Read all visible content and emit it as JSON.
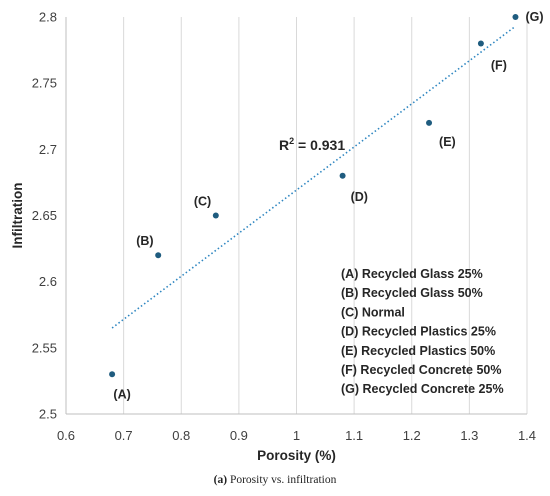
{
  "chart_data": {
    "type": "scatter",
    "title": "",
    "xlabel": "Porosity (%)",
    "ylabel": "Infiltration",
    "xlim": [
      0.6,
      1.4
    ],
    "ylim": [
      2.5,
      2.8
    ],
    "x_ticks": [
      "0.6",
      "0.7",
      "0.8",
      "0.9",
      "1",
      "1.1",
      "1.2",
      "1.3",
      "1.4"
    ],
    "y_ticks": [
      "2.5",
      "2.55",
      "2.6",
      "2.65",
      "2.7",
      "2.75",
      "2.8"
    ],
    "grid": "vertical",
    "marker_color": "#1f5c7f",
    "trendline_color": "#2e86c1",
    "points": [
      {
        "label": "(A)",
        "x": 0.68,
        "y": 2.53
      },
      {
        "label": "(B)",
        "x": 0.76,
        "y": 2.62
      },
      {
        "label": "(C)",
        "x": 0.86,
        "y": 2.65
      },
      {
        "label": "(D)",
        "x": 1.08,
        "y": 2.68
      },
      {
        "label": "(E)",
        "x": 1.23,
        "y": 2.72
      },
      {
        "label": "(F)",
        "x": 1.32,
        "y": 2.78
      },
      {
        "label": "(G)",
        "x": 1.38,
        "y": 2.8
      }
    ],
    "trendline": {
      "type": "linear",
      "x_start": 0.68,
      "y_start": 2.565,
      "x_end": 1.38,
      "y_end": 2.793,
      "r2_prefix": "R",
      "r2_sup": "2",
      "r2_value": " = 0.931"
    },
    "legend": [
      "(A) Recycled Glass 25%",
      "(B) Recycled Glass 50%",
      "(C) Normal",
      "(D) Recycled Plastics 25%",
      "(E) Recycled Plastics 50%",
      "(F) Recycled Concrete 50%",
      "(G) Recycled Concrete 25%"
    ],
    "legend_position": "bottom-right"
  },
  "caption": {
    "prefix": "(a)",
    "text": " Porosity vs. infiltration"
  }
}
